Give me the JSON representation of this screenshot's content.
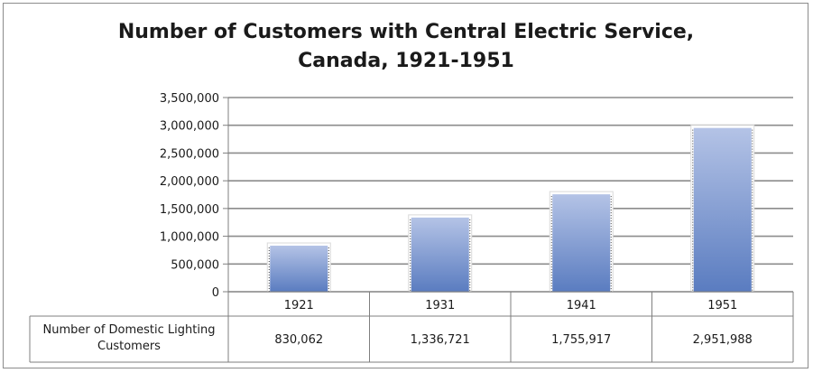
{
  "chart_data": {
    "type": "bar",
    "title_lines": [
      "Number of Customers with Central Electric Service,",
      "Canada, 1921-1951"
    ],
    "categories": [
      "1921",
      "1931",
      "1941",
      "1951"
    ],
    "series": [
      {
        "name": "Number of Domestic Lighting Customers",
        "name_lines": [
          "Number of Domestic Lighting",
          "Customers"
        ],
        "values": [
          830062,
          1336721,
          1755917,
          2951988
        ],
        "value_labels": [
          "830,062",
          "1,336,721",
          "1,755,917",
          "2,951,988"
        ]
      }
    ],
    "y_ticks": [
      {
        "value": 0,
        "label": "0"
      },
      {
        "value": 500000,
        "label": "500,000"
      },
      {
        "value": 1000000,
        "label": "1,000,000"
      },
      {
        "value": 1500000,
        "label": "1,500,000"
      },
      {
        "value": 2000000,
        "label": "2,000,000"
      },
      {
        "value": 2500000,
        "label": "2,500,000"
      },
      {
        "value": 3000000,
        "label": "3,000,000"
      },
      {
        "value": 3500000,
        "label": "3,500,000"
      }
    ],
    "ylim": [
      0,
      3500000
    ],
    "grid": true,
    "legend": "data-table-below",
    "colors": {
      "bar_top": "#b4c3e6",
      "bar_bottom": "#5a7cc0",
      "grid": "#8c8c8c",
      "axis": "#7f7f7f"
    }
  }
}
